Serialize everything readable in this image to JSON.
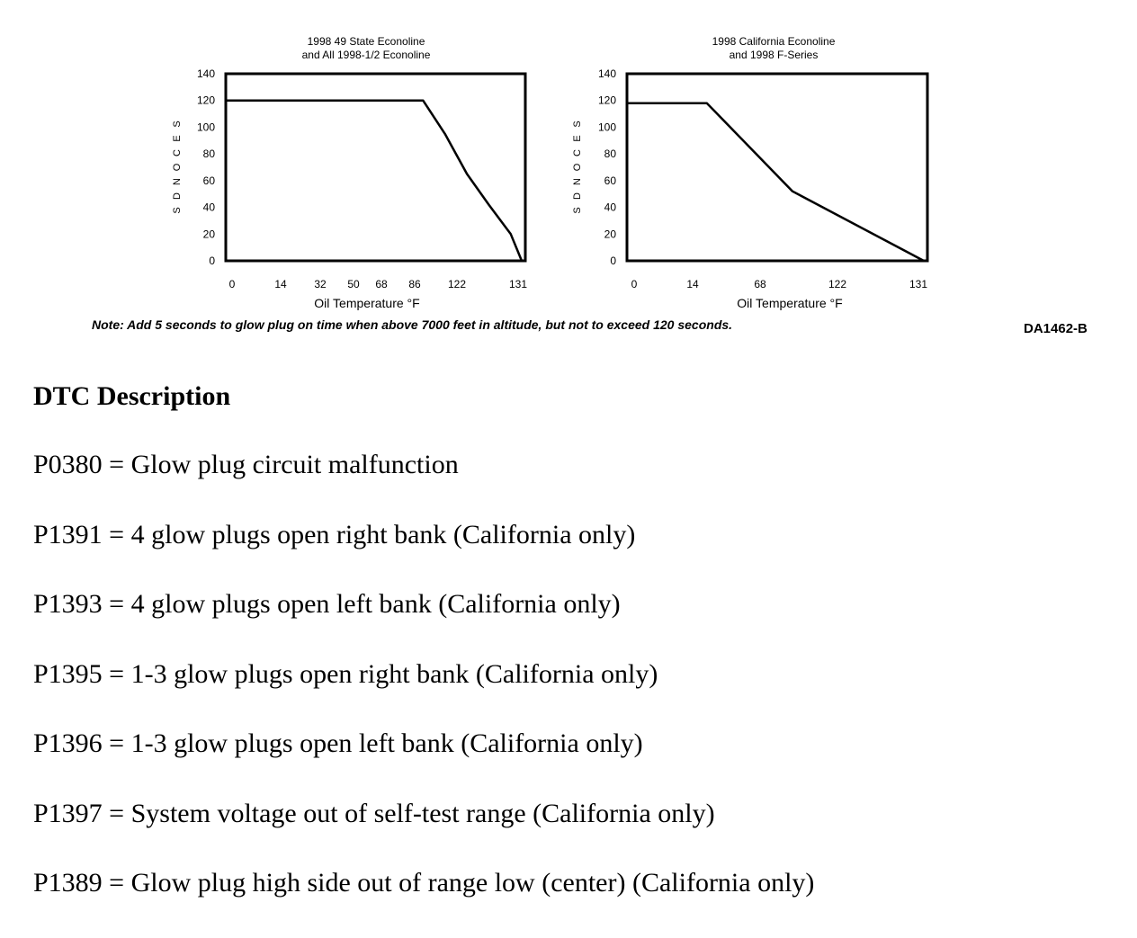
{
  "chart_data": [
    {
      "type": "line",
      "title": "1998 49 State Econoline\nand All 1998-1/2 Econoline",
      "xlabel": "Oil Temperature °F",
      "ylabel": "SECONDS",
      "ylim": [
        0,
        140
      ],
      "yticks": [
        0,
        20,
        40,
        60,
        80,
        100,
        120,
        140
      ],
      "xtick_labels": [
        "0",
        "14",
        "32",
        "50",
        "68",
        "86",
        "122",
        "131"
      ],
      "series": [
        {
          "x": [
            0,
            18,
            20,
            22,
            24,
            26,
            27
          ],
          "y": [
            120,
            120,
            95,
            65,
            42,
            20,
            0
          ]
        }
      ]
    },
    {
      "type": "line",
      "title": "1998 California Econoline\nand 1998 F-Series",
      "xlabel": "Oil Temperature °F",
      "ylabel": "SECONDS",
      "ylim": [
        0,
        140
      ],
      "yticks": [
        0,
        20,
        40,
        60,
        80,
        100,
        120,
        140
      ],
      "xtick_labels": [
        "0",
        "14",
        "68",
        "122",
        "131"
      ],
      "series": [
        {
          "x": [
            0,
            14,
            29,
            52
          ],
          "y": [
            118,
            118,
            52,
            0
          ]
        }
      ]
    }
  ],
  "figure": {
    "note": "Note: Add 5 seconds to glow plug on time when above 7000 feet in altitude, but not to exceed 120 seconds.",
    "figure_id": "DA1462-B"
  },
  "document": {
    "heading": "DTC Description",
    "items": [
      "P0380 = Glow plug circuit malfunction",
      "P1391 = 4 glow plugs open right bank (California only)",
      "P1393 = 4 glow plugs open left bank (California only)",
      "P1395 = 1-3 glow plugs open right bank (California only)",
      "P1396 = 1-3 glow plugs open left bank (California only)",
      "P1397 = System voltage out of self-test range (California only)",
      "P1389 = Glow plug high side out of range low (center) (California only)"
    ]
  }
}
